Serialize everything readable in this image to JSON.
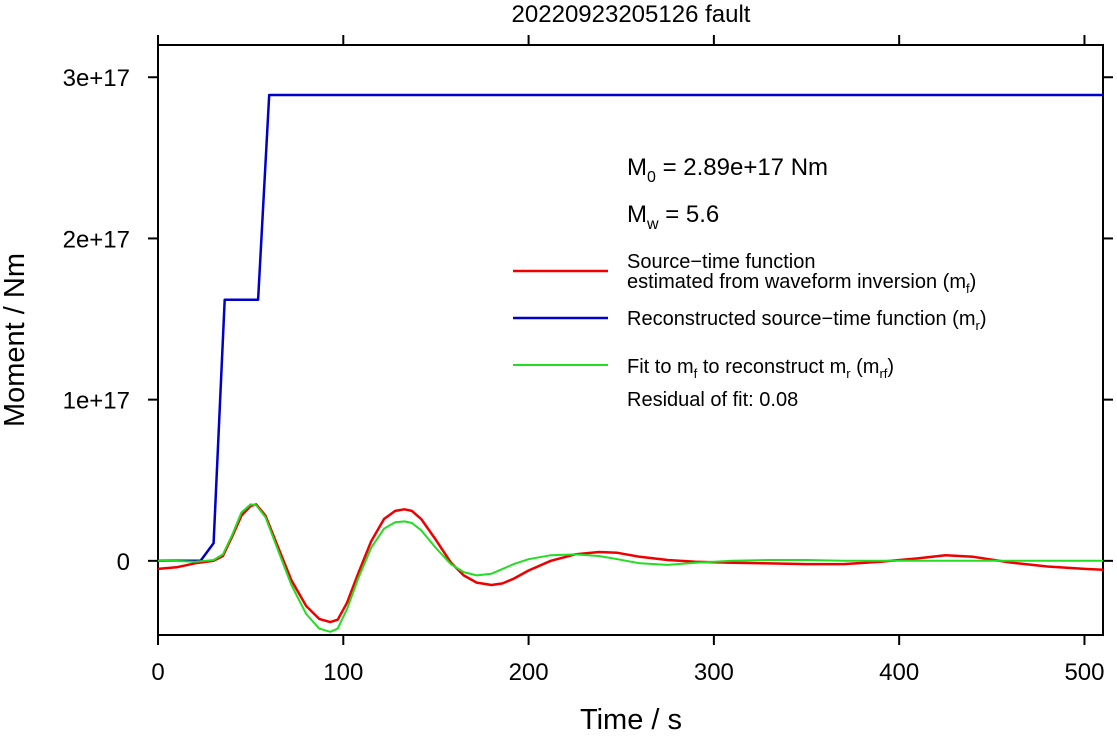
{
  "chart_data": {
    "type": "line",
    "title": "20220923205126 fault",
    "xlabel": "Time / s",
    "ylabel": "Moment / Nm",
    "xlim": [
      0,
      510
    ],
    "ylim": [
      -4.6e+16,
      3.2e+17
    ],
    "xticks": [
      0,
      100,
      200,
      300,
      400,
      500
    ],
    "xtick_labels": [
      "0",
      "100",
      "200",
      "300",
      "400",
      "500"
    ],
    "yticks": [
      0,
      1e+17,
      2e+17,
      3e+17
    ],
    "ytick_labels": [
      "0",
      "1e+17",
      "2e+17",
      "3e+17"
    ],
    "grid": false,
    "legend_position": "right",
    "annotations": {
      "m0_label": "M",
      "m0_sub": "0",
      "m0_value": " = 2.89e+17 Nm",
      "mw_label": "M",
      "mw_sub": "w",
      "mw_value": " = 5.6",
      "residual": "Residual of fit: 0.08"
    },
    "legend": [
      {
        "line1": "Source−time function",
        "line2_pre": "estimated from waveform inversion (m",
        "sub": "f",
        "post": ")",
        "color": "#ee0000"
      },
      {
        "line1_pre": "Reconstructed source−time function (m",
        "sub": "r",
        "post": ")",
        "color": "#0000cc"
      },
      {
        "line1_pre": "Fit to m",
        "sub_a": "f",
        "mid": " to reconstruct m",
        "sub_b": "r",
        "mid2": " (m",
        "sub_c": "rf",
        "post": ")",
        "color": "#22dd22"
      }
    ],
    "series": [
      {
        "color": "#0000cc",
        "x": [
          0,
          23,
          30,
          36,
          54,
          60,
          510
        ],
        "y": [
          0,
          0,
          1.1e+16,
          1.62e+17,
          1.62e+17,
          2.89e+17,
          2.89e+17
        ]
      },
      {
        "color": "#ee0000",
        "x": [
          0,
          10,
          20,
          30,
          35,
          40,
          45,
          50,
          53,
          58,
          65,
          72,
          80,
          87,
          93,
          97,
          102,
          108,
          115,
          122,
          128,
          133,
          137,
          142,
          150,
          158,
          165,
          172,
          180,
          186,
          192,
          200,
          212,
          225,
          238,
          248,
          260,
          275,
          290,
          310,
          330,
          350,
          370,
          390,
          410,
          425,
          440,
          460,
          480,
          500,
          510
        ],
        "y": [
          -5000000000000000.0,
          -4000000000000000.0,
          -1500000000000000.0,
          100000000000000.0,
          3000000000000000.0,
          1.5e+16,
          2.8e+16,
          3.4e+16,
          3.5e+16,
          2.8e+16,
          8000000000000000.0,
          -1.2e+16,
          -2.8e+16,
          -3.6e+16,
          -3.8e+16,
          -3.65e+16,
          -2.6e+16,
          -8000000000000000.0,
          1.2e+16,
          2.6e+16,
          3.1e+16,
          3.2e+16,
          3.1e+16,
          2.6e+16,
          1.3e+16,
          -1000000000000000.0,
          -9000000000000000.0,
          -1.35e+16,
          -1.5e+16,
          -1.4e+16,
          -1.1e+16,
          -6000000000000000.0,
          0,
          4000000000000000.0,
          5500000000000000.0,
          5000000000000000.0,
          2500000000000000.0,
          500000000000000.0,
          -500000000000000.0,
          -1200000000000000.0,
          -1600000000000000.0,
          -2000000000000000.0,
          -2000000000000000.0,
          -500000000000000.0,
          1500000000000000.0,
          3500000000000000.0,
          2500000000000000.0,
          -1000000000000000.0,
          -3500000000000000.0,
          -5000000000000000.0,
          -5500000000000000.0
        ]
      },
      {
        "color": "#22dd22",
        "x": [
          0,
          10,
          20,
          30,
          35,
          40,
          45,
          50,
          53,
          58,
          65,
          72,
          80,
          87,
          93,
          97,
          102,
          108,
          115,
          122,
          128,
          133,
          137,
          142,
          150,
          158,
          165,
          172,
          180,
          186,
          192,
          200,
          212,
          225,
          238,
          248,
          260,
          275,
          290,
          310,
          330,
          350,
          370,
          390,
          410,
          425,
          440,
          460,
          480,
          500,
          510
        ],
        "y": [
          0,
          -100000000000000.0,
          -500000000000000.0,
          500000000000000.0,
          4000000000000000.0,
          1.6e+16,
          3e+16,
          3.5e+16,
          3.45e+16,
          2.7e+16,
          6000000000000000.0,
          -1.5e+16,
          -3.3e+16,
          -4.2e+16,
          -4.4e+16,
          -4.2e+16,
          -3e+16,
          -1.1e+16,
          8000000000000000.0,
          2e+16,
          2.4e+16,
          2.45e+16,
          2.35e+16,
          1.9e+16,
          8000000000000000.0,
          -2000000000000000.0,
          -7000000000000000.0,
          -9000000000000000.0,
          -8000000000000000.0,
          -5000000000000000.0,
          -2000000000000000.0,
          1000000000000000.0,
          3500000000000000.0,
          4000000000000000.0,
          3000000000000000.0,
          1000000000000000.0,
          -1500000000000000.0,
          -2500000000000000.0,
          -1200000000000000.0,
          0,
          500000000000000.0,
          500000000000000.0,
          100000000000000.0,
          0,
          0,
          0,
          0,
          0,
          0,
          0,
          0
        ]
      }
    ]
  }
}
